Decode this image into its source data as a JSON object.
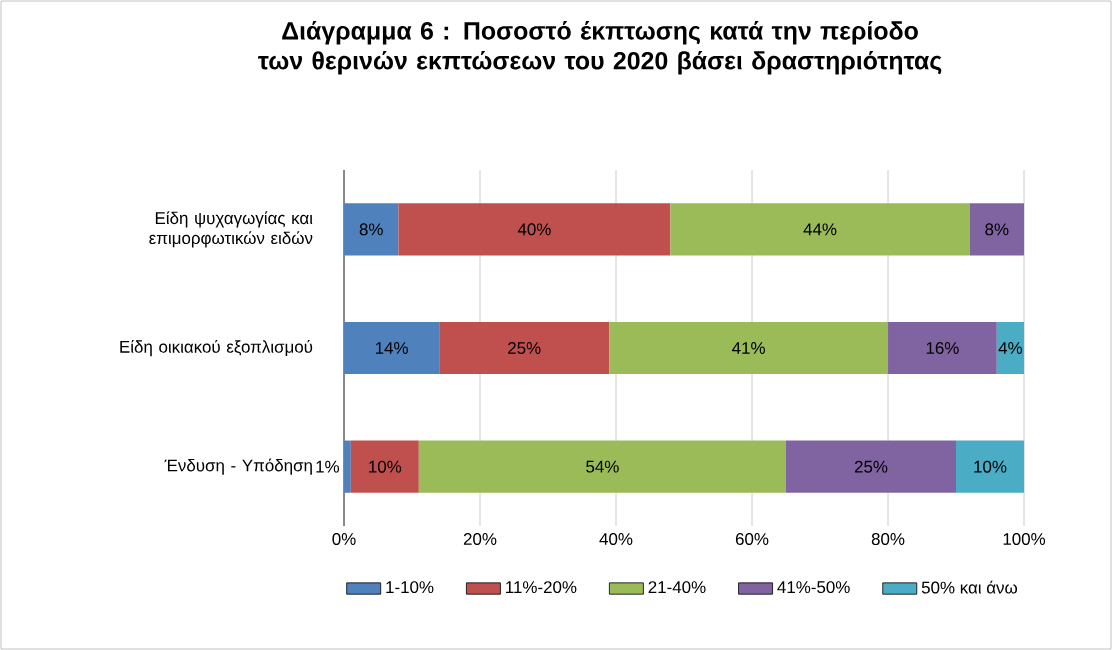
{
  "chart_data": {
    "type": "bar",
    "orientation": "horizontal",
    "stacked": true,
    "title": "Διάγραμμα 6 : Ποσοστό έκπτωσης κατά την περίοδο των θερινών εκπτώσεων του 2020 βάσει δραστηριότητας",
    "categories": [
      "Είδη ψυχαγωγίας και επιμορφωτικών ειδών",
      "Είδη οικιακού εξοπλισμού",
      "Ένδυση - Υπόδηση"
    ],
    "series": [
      {
        "name": "1-10%",
        "color": "#4f81bd",
        "values": [
          8,
          14,
          1
        ],
        "value_labels": [
          "8%",
          "14%",
          "1%"
        ]
      },
      {
        "name": "11%-20%",
        "color": "#c0504d",
        "values": [
          40,
          25,
          10
        ],
        "value_labels": [
          "40%",
          "25%",
          "10%"
        ]
      },
      {
        "name": "21-40%",
        "color": "#9bbb59",
        "values": [
          44,
          41,
          54
        ],
        "value_labels": [
          "44%",
          "41%",
          "54%"
        ]
      },
      {
        "name": "41%-50%",
        "color": "#8064a2",
        "values": [
          8,
          16,
          25
        ],
        "value_labels": [
          "8%",
          "16%",
          "25%"
        ]
      },
      {
        "name": "50% και άνω",
        "color": "#4bacc6",
        "values": [
          null,
          4,
          10
        ],
        "value_labels": [
          null,
          "4%",
          "10%"
        ]
      }
    ],
    "xlim": [
      0,
      100
    ],
    "xticks": [
      {
        "value": 0,
        "label": "0%"
      },
      {
        "value": 20,
        "label": "20%"
      },
      {
        "value": 40,
        "label": "40%"
      },
      {
        "value": 60,
        "label": "60%"
      },
      {
        "value": 80,
        "label": "80%"
      },
      {
        "value": 100,
        "label": "100%"
      }
    ],
    "grid": "x",
    "legend": "bottom"
  }
}
